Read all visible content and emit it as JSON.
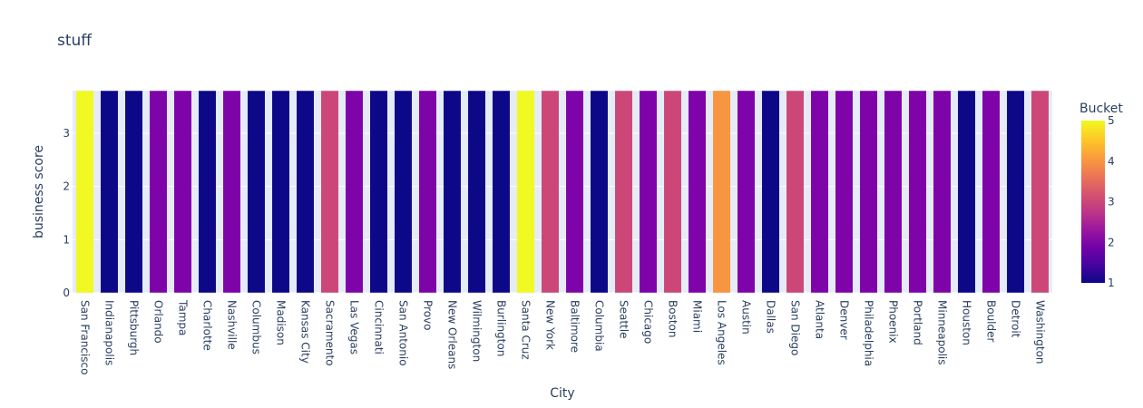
{
  "chart_data": {
    "type": "bar",
    "title": "stuff",
    "xlabel": "City",
    "ylabel": "business score",
    "ylim": [
      0,
      3.8
    ],
    "y_ticks": [
      0,
      1,
      2,
      3
    ],
    "grid": true,
    "categories": [
      "San Francisco",
      "Indianapolis",
      "Pittsburgh",
      "Orlando",
      "Tampa",
      "Charlotte",
      "Nashville",
      "Columbus",
      "Madison",
      "Kansas City",
      "Sacramento",
      "Las Vegas",
      "Cincinnati",
      "San Antonio",
      "Provo",
      "New Orleans",
      "Wilmington",
      "Burlington",
      "Santa Cruz",
      "New York",
      "Baltimore",
      "Columbia",
      "Seattle",
      "Chicago",
      "Boston",
      "Miami",
      "Los Angeles",
      "Austin",
      "Dallas",
      "San Diego",
      "Atlanta",
      "Denver",
      "Philadelphia",
      "Phoenix",
      "Portland",
      "Minneapolis",
      "Houston",
      "Boulder",
      "Detroit",
      "Washington"
    ],
    "values": [
      3.8,
      3.8,
      3.8,
      3.8,
      3.8,
      3.8,
      3.8,
      3.8,
      3.8,
      3.8,
      3.8,
      3.8,
      3.8,
      3.8,
      3.8,
      3.8,
      3.8,
      3.8,
      3.8,
      3.8,
      3.8,
      3.8,
      3.8,
      3.8,
      3.8,
      3.8,
      3.8,
      3.8,
      3.8,
      3.8,
      3.8,
      3.8,
      3.8,
      3.8,
      3.8,
      3.8,
      3.8,
      3.8,
      3.8,
      3.8
    ],
    "bucket": [
      5,
      1,
      1,
      2,
      2,
      1,
      2,
      1,
      1,
      1,
      3,
      2,
      1,
      1,
      2,
      1,
      1,
      1,
      5,
      3,
      2,
      1,
      3,
      2,
      3,
      2,
      4,
      2,
      1,
      3,
      2,
      2,
      2,
      2,
      2,
      2,
      1,
      2,
      1,
      3
    ],
    "colorbar": {
      "title": "Bucket",
      "min": 1,
      "max": 5,
      "ticks": [
        1,
        2,
        3,
        4,
        5
      ],
      "colors": {
        "1": "#0d0887",
        "2": "#7e03a8",
        "3": "#cc4778",
        "4": "#f89540",
        "5": "#f0f921"
      }
    },
    "legend_placement": "right"
  }
}
